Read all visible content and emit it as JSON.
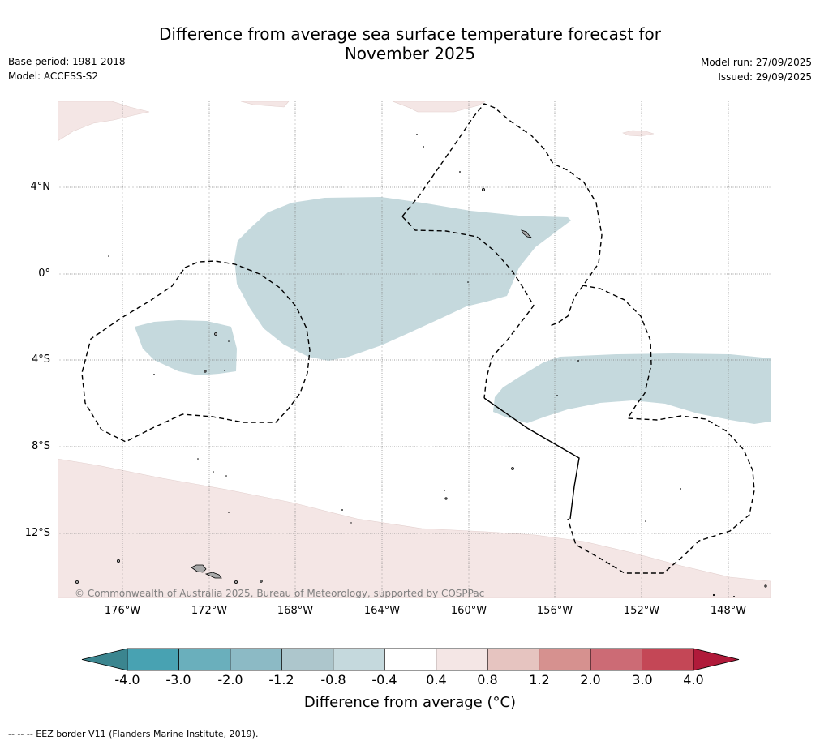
{
  "title": {
    "line1": "Difference from average sea surface temperature forecast for",
    "line2": "November 2025"
  },
  "meta_left": {
    "base_period": "Base period: 1981-2018",
    "model": "Model: ACCESS-S2"
  },
  "meta_right": {
    "model_run": "Model run: 27/09/2025",
    "issued": "Issued: 29/09/2025"
  },
  "map": {
    "copyright": "© Commonwealth of Australia 2025, Bureau of Meteorology, supported by COSPPac",
    "lat_labels": [
      "4°N",
      "0°",
      "4°S",
      "8°S",
      "12°S"
    ],
    "lon_labels": [
      "176°W",
      "172°W",
      "168°W",
      "164°W",
      "160°W",
      "156°W",
      "152°W",
      "148°W"
    ],
    "anomaly_colors": {
      "cool": "#c5d9dd",
      "warm": "#f4e6e5",
      "land": "#a9a9a9"
    }
  },
  "colorbar": {
    "labels": [
      "-4.0",
      "-3.0",
      "-2.0",
      "-1.2",
      "-0.8",
      "-0.4",
      "0.4",
      "0.8",
      "1.2",
      "2.0",
      "3.0",
      "4.0"
    ],
    "colors": [
      "#48a2b2",
      "#6aafbc",
      "#8cbac5",
      "#adc6cc",
      "#c5d9dd",
      "#ffffff",
      "#f4e6e5",
      "#e6c4c0",
      "#d6918f",
      "#cc6b75",
      "#c44756"
    ],
    "under_color": "#3b858f",
    "over_color": "#b01a3a",
    "title": "Difference from average (°C)"
  },
  "legend": {
    "eez": "--  --  -- EEZ border V11 (Flanders Marine Institute, 2019)."
  }
}
